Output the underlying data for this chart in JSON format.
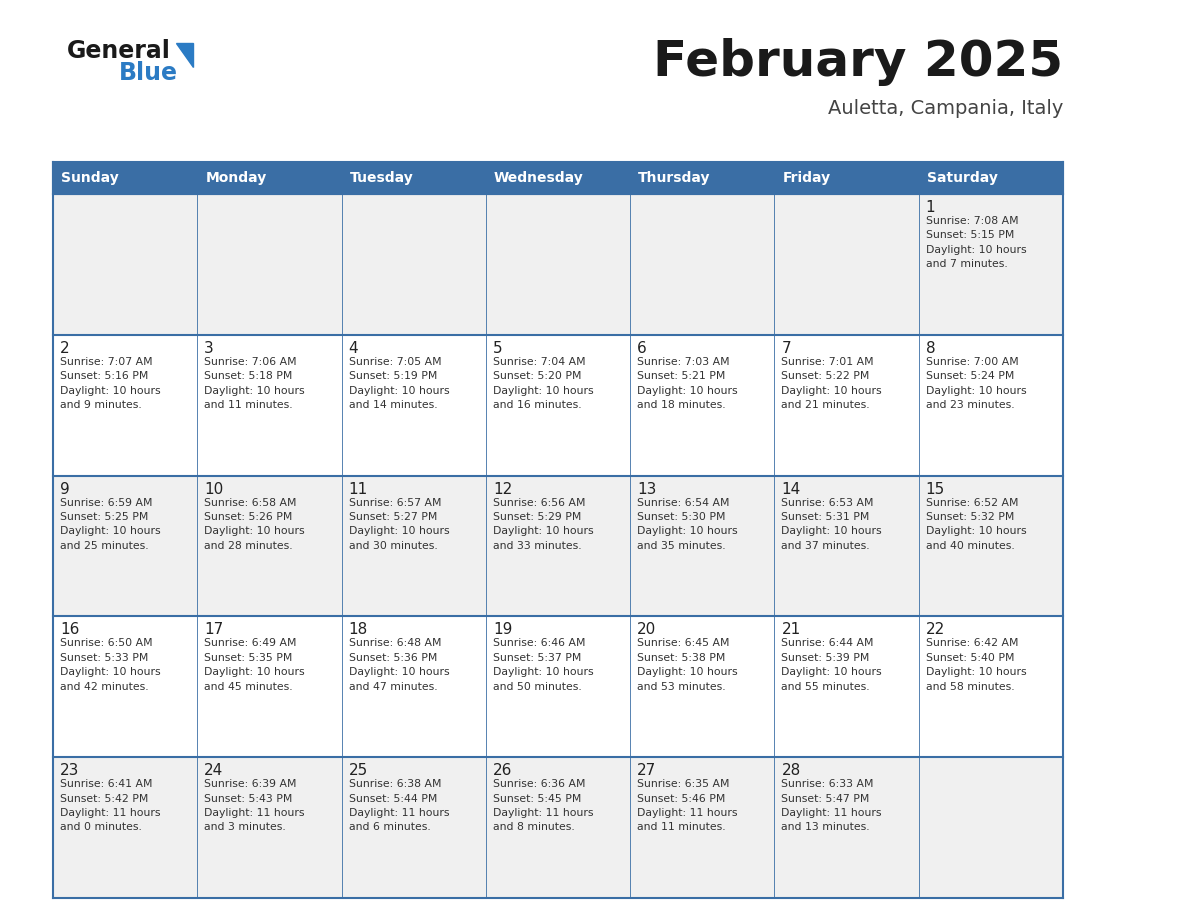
{
  "title": "February 2025",
  "subtitle": "Auletta, Campania, Italy",
  "header_bg": "#3a6ea5",
  "header_text_color": "#ffffff",
  "cell_bg_odd": "#f0f0f0",
  "cell_bg_even": "#ffffff",
  "border_color": "#3a6ea5",
  "text_color": "#333333",
  "day_names": [
    "Sunday",
    "Monday",
    "Tuesday",
    "Wednesday",
    "Thursday",
    "Friday",
    "Saturday"
  ],
  "weeks": [
    [
      {
        "day": null,
        "info": null
      },
      {
        "day": null,
        "info": null
      },
      {
        "day": null,
        "info": null
      },
      {
        "day": null,
        "info": null
      },
      {
        "day": null,
        "info": null
      },
      {
        "day": null,
        "info": null
      },
      {
        "day": "1",
        "info": "Sunrise: 7:08 AM\nSunset: 5:15 PM\nDaylight: 10 hours\nand 7 minutes."
      }
    ],
    [
      {
        "day": "2",
        "info": "Sunrise: 7:07 AM\nSunset: 5:16 PM\nDaylight: 10 hours\nand 9 minutes."
      },
      {
        "day": "3",
        "info": "Sunrise: 7:06 AM\nSunset: 5:18 PM\nDaylight: 10 hours\nand 11 minutes."
      },
      {
        "day": "4",
        "info": "Sunrise: 7:05 AM\nSunset: 5:19 PM\nDaylight: 10 hours\nand 14 minutes."
      },
      {
        "day": "5",
        "info": "Sunrise: 7:04 AM\nSunset: 5:20 PM\nDaylight: 10 hours\nand 16 minutes."
      },
      {
        "day": "6",
        "info": "Sunrise: 7:03 AM\nSunset: 5:21 PM\nDaylight: 10 hours\nand 18 minutes."
      },
      {
        "day": "7",
        "info": "Sunrise: 7:01 AM\nSunset: 5:22 PM\nDaylight: 10 hours\nand 21 minutes."
      },
      {
        "day": "8",
        "info": "Sunrise: 7:00 AM\nSunset: 5:24 PM\nDaylight: 10 hours\nand 23 minutes."
      }
    ],
    [
      {
        "day": "9",
        "info": "Sunrise: 6:59 AM\nSunset: 5:25 PM\nDaylight: 10 hours\nand 25 minutes."
      },
      {
        "day": "10",
        "info": "Sunrise: 6:58 AM\nSunset: 5:26 PM\nDaylight: 10 hours\nand 28 minutes."
      },
      {
        "day": "11",
        "info": "Sunrise: 6:57 AM\nSunset: 5:27 PM\nDaylight: 10 hours\nand 30 minutes."
      },
      {
        "day": "12",
        "info": "Sunrise: 6:56 AM\nSunset: 5:29 PM\nDaylight: 10 hours\nand 33 minutes."
      },
      {
        "day": "13",
        "info": "Sunrise: 6:54 AM\nSunset: 5:30 PM\nDaylight: 10 hours\nand 35 minutes."
      },
      {
        "day": "14",
        "info": "Sunrise: 6:53 AM\nSunset: 5:31 PM\nDaylight: 10 hours\nand 37 minutes."
      },
      {
        "day": "15",
        "info": "Sunrise: 6:52 AM\nSunset: 5:32 PM\nDaylight: 10 hours\nand 40 minutes."
      }
    ],
    [
      {
        "day": "16",
        "info": "Sunrise: 6:50 AM\nSunset: 5:33 PM\nDaylight: 10 hours\nand 42 minutes."
      },
      {
        "day": "17",
        "info": "Sunrise: 6:49 AM\nSunset: 5:35 PM\nDaylight: 10 hours\nand 45 minutes."
      },
      {
        "day": "18",
        "info": "Sunrise: 6:48 AM\nSunset: 5:36 PM\nDaylight: 10 hours\nand 47 minutes."
      },
      {
        "day": "19",
        "info": "Sunrise: 6:46 AM\nSunset: 5:37 PM\nDaylight: 10 hours\nand 50 minutes."
      },
      {
        "day": "20",
        "info": "Sunrise: 6:45 AM\nSunset: 5:38 PM\nDaylight: 10 hours\nand 53 minutes."
      },
      {
        "day": "21",
        "info": "Sunrise: 6:44 AM\nSunset: 5:39 PM\nDaylight: 10 hours\nand 55 minutes."
      },
      {
        "day": "22",
        "info": "Sunrise: 6:42 AM\nSunset: 5:40 PM\nDaylight: 10 hours\nand 58 minutes."
      }
    ],
    [
      {
        "day": "23",
        "info": "Sunrise: 6:41 AM\nSunset: 5:42 PM\nDaylight: 11 hours\nand 0 minutes."
      },
      {
        "day": "24",
        "info": "Sunrise: 6:39 AM\nSunset: 5:43 PM\nDaylight: 11 hours\nand 3 minutes."
      },
      {
        "day": "25",
        "info": "Sunrise: 6:38 AM\nSunset: 5:44 PM\nDaylight: 11 hours\nand 6 minutes."
      },
      {
        "day": "26",
        "info": "Sunrise: 6:36 AM\nSunset: 5:45 PM\nDaylight: 11 hours\nand 8 minutes."
      },
      {
        "day": "27",
        "info": "Sunrise: 6:35 AM\nSunset: 5:46 PM\nDaylight: 11 hours\nand 11 minutes."
      },
      {
        "day": "28",
        "info": "Sunrise: 6:33 AM\nSunset: 5:47 PM\nDaylight: 11 hours\nand 13 minutes."
      },
      {
        "day": null,
        "info": null
      }
    ]
  ],
  "logo_text1": "General",
  "logo_text2": "Blue",
  "logo_color1": "#1a1a1a",
  "logo_color2": "#2b7bc4",
  "logo_triangle_color": "#2b7bc4",
  "fig_width": 11.88,
  "fig_height": 9.18,
  "dpi": 100
}
